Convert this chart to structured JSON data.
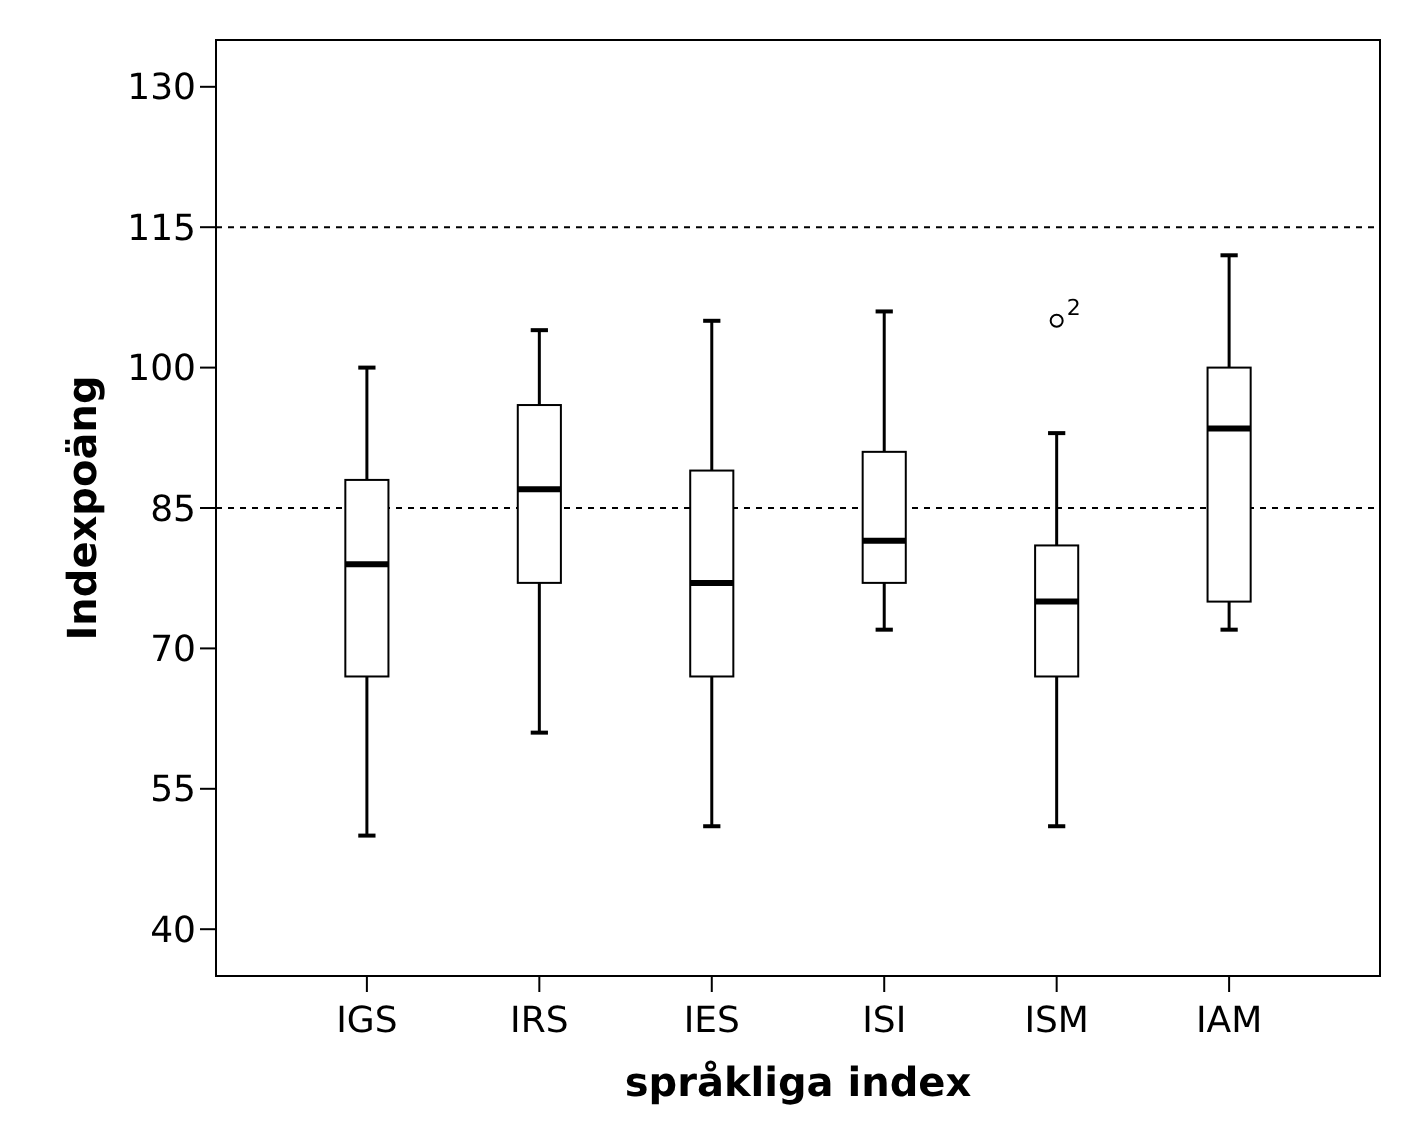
{
  "chart_data": {
    "type": "box",
    "xlabel": "språkliga index",
    "ylabel": "Indexpoäng",
    "categories": [
      "IGS",
      "IRS",
      "IES",
      "ISI",
      "ISM",
      "IAM"
    ],
    "boxes": [
      {
        "low": 50,
        "q1": 67,
        "median": 79,
        "q3": 88,
        "high": 100
      },
      {
        "low": 61,
        "q1": 77,
        "median": 87,
        "q3": 96,
        "high": 104
      },
      {
        "low": 51,
        "q1": 67,
        "median": 77,
        "q3": 89,
        "high": 105
      },
      {
        "low": 72,
        "q1": 77,
        "median": 81.5,
        "q3": 91,
        "high": 106
      },
      {
        "low": 51,
        "q1": 67,
        "median": 75,
        "q3": 81,
        "high": 93,
        "outliers": [
          105
        ]
      },
      {
        "low": 72,
        "q1": 75,
        "median": 93.5,
        "q3": 100,
        "high": 112
      }
    ],
    "color": "#ffffff",
    "ylim": [
      35,
      135
    ],
    "yticks": [
      40,
      55,
      70,
      85,
      100,
      115,
      130
    ],
    "ref_lines": [
      {
        "axis": "y",
        "value": 115,
        "line_style": "dashed"
      },
      {
        "axis": "y",
        "value": 85,
        "line_style": "dashed"
      }
    ],
    "annotations": [
      "2"
    ]
  }
}
